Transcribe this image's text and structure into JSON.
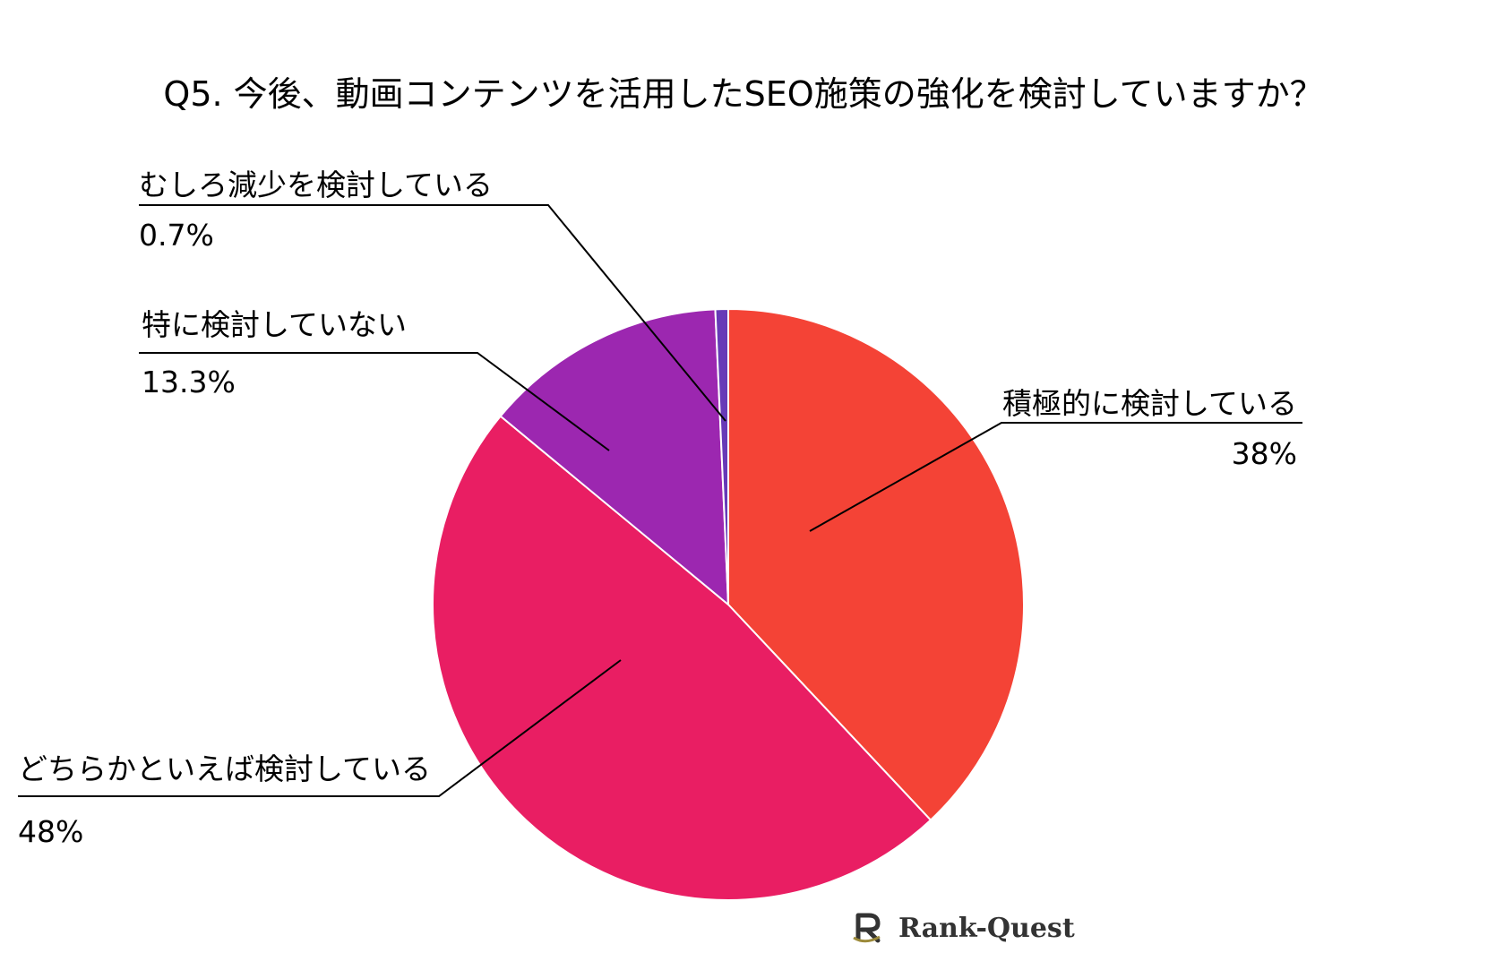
{
  "chart_data": {
    "type": "pie",
    "title": "Q5. 今後、動画コンテンツを活用したSEO施策の強化を検討していますか？",
    "slices": [
      {
        "label": "積極的に検討している",
        "value": 38,
        "display": "38%",
        "color": "#F44336"
      },
      {
        "label": "どちらかといえば検討している",
        "value": 48,
        "display": "48%",
        "color": "#E91E63"
      },
      {
        "label": "特に検討していない",
        "value": 13.3,
        "display": "13.3%",
        "color": "#9C27B0"
      },
      {
        "label": "むしろ減少を検討している",
        "value": 0.7,
        "display": "0.7%",
        "color": "#673AB7"
      }
    ],
    "legend": "none",
    "start_angle": "12 o'clock",
    "direction": "clockwise"
  },
  "logo": {
    "text": "Rank-Quest"
  }
}
